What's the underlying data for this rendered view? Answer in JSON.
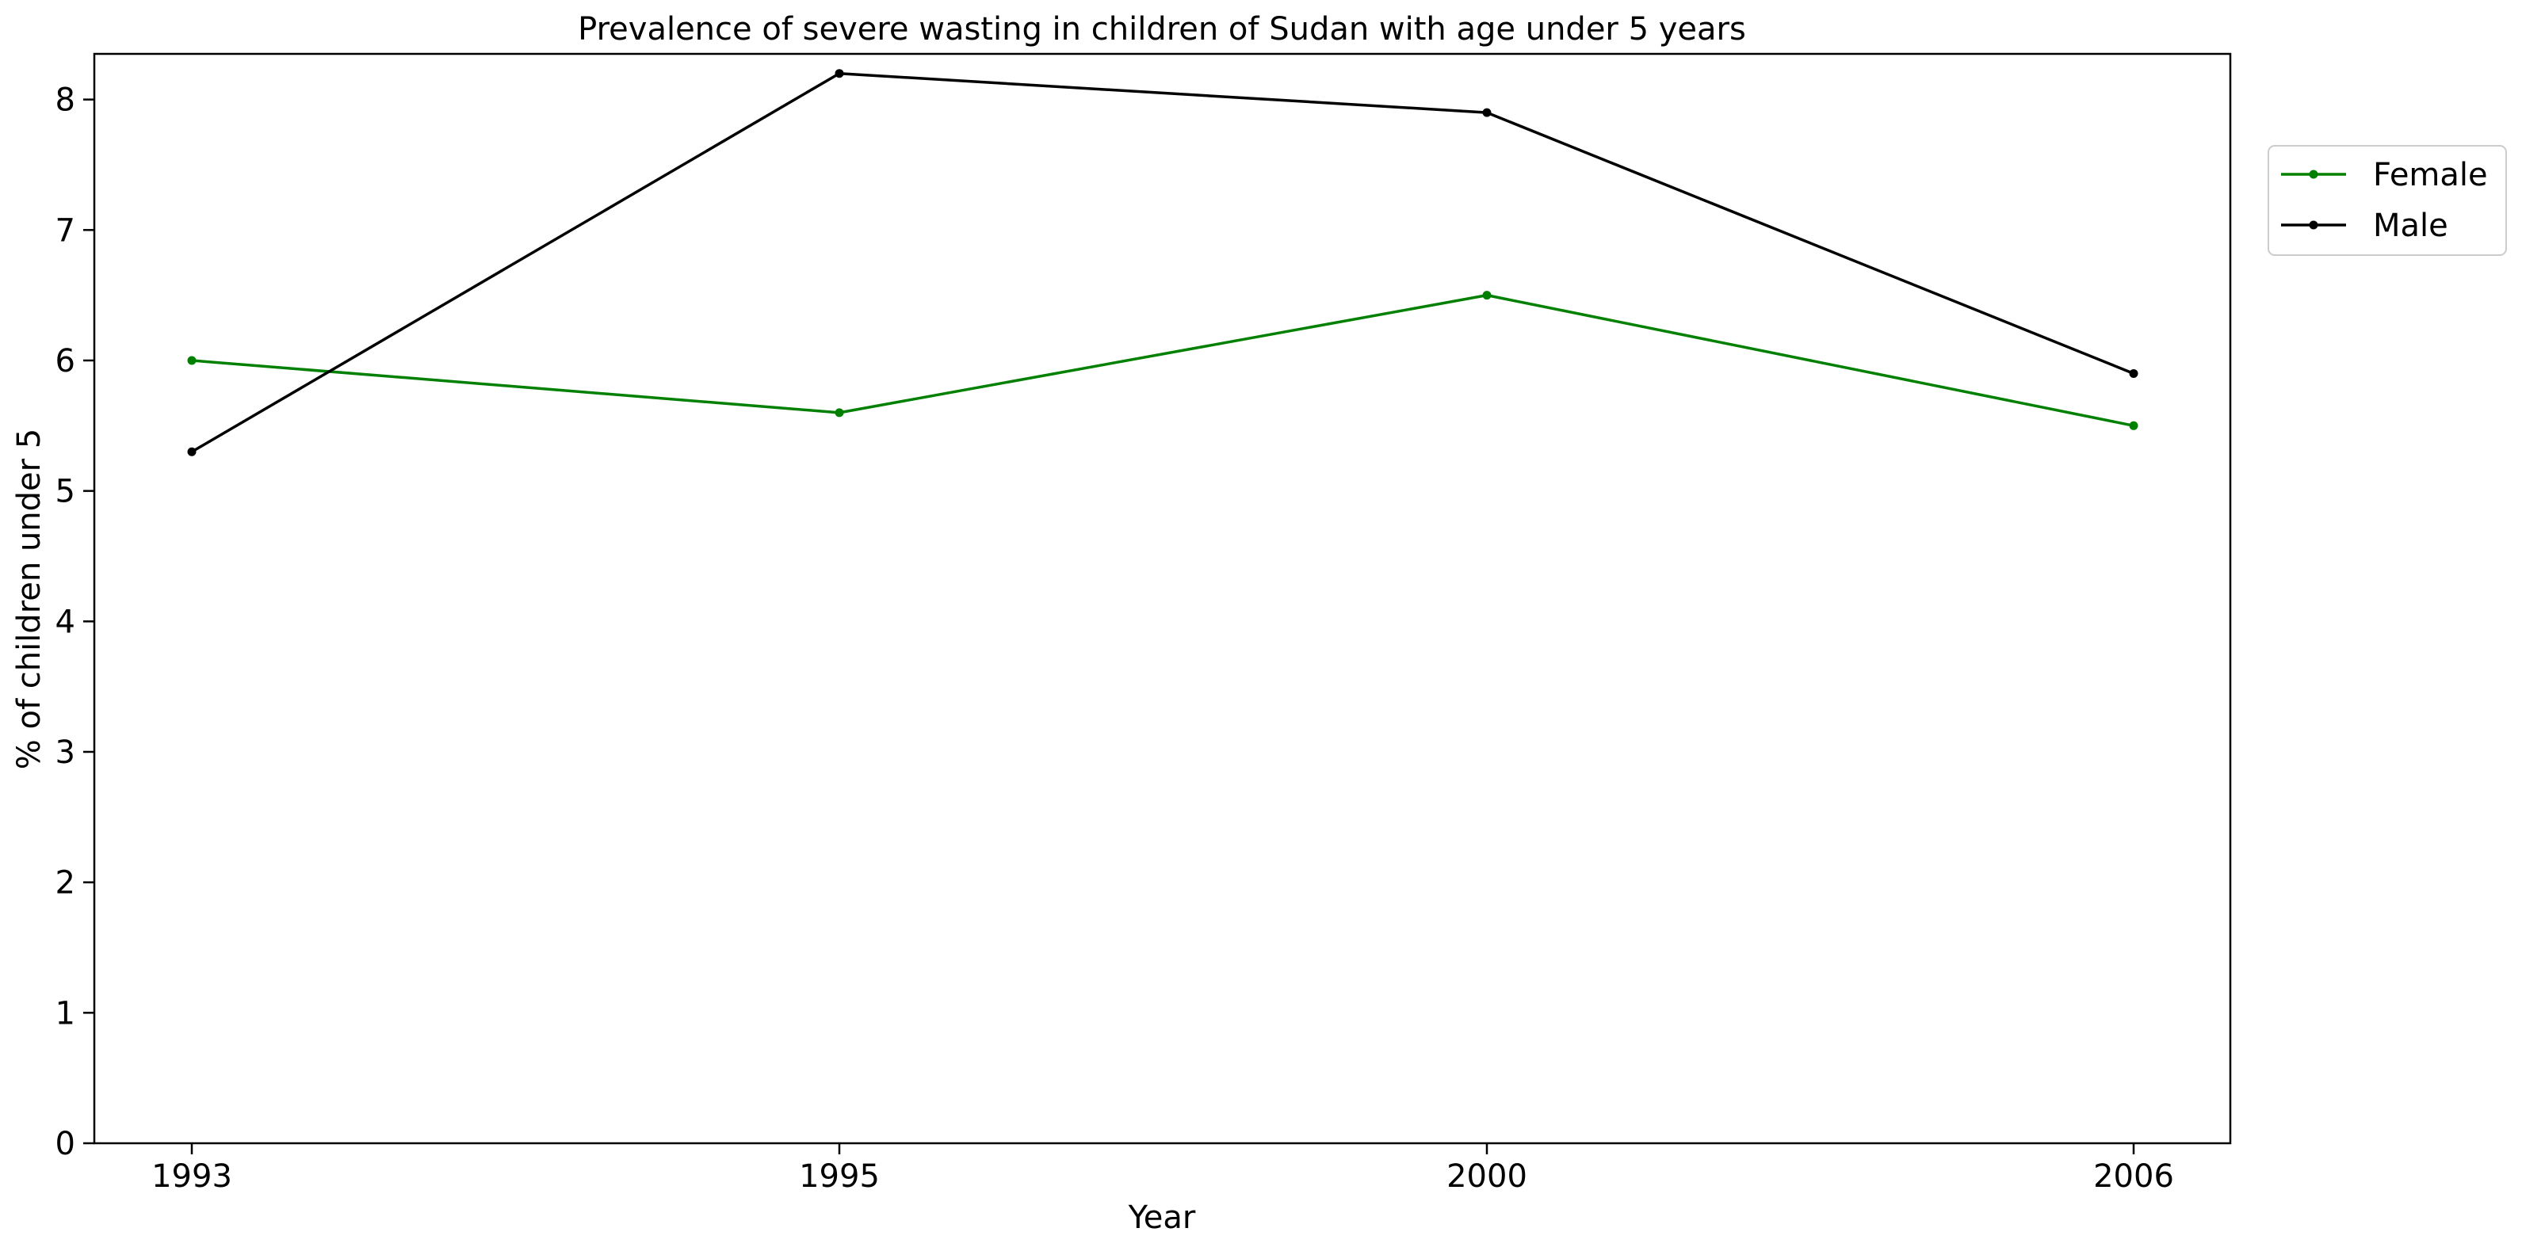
{
  "chart_data": {
    "type": "line",
    "title": "Prevalence of severe wasting in children of Sudan with age under 5 years",
    "xlabel": "Year",
    "ylabel": "% of children under 5",
    "x": [
      "1993",
      "1995",
      "2000",
      "2006"
    ],
    "series": [
      {
        "name": "Female",
        "color": "#008000",
        "values": [
          6.0,
          5.6,
          6.5,
          5.5
        ]
      },
      {
        "name": "Male",
        "color": "#000000",
        "values": [
          5.3,
          8.2,
          7.9,
          5.9
        ]
      }
    ],
    "ylim": [
      0,
      8.35
    ],
    "yticks": [
      "0",
      "1",
      "2",
      "3",
      "4",
      "5",
      "6",
      "7",
      "8"
    ],
    "grid": false,
    "legend": "upper-right-outside"
  }
}
